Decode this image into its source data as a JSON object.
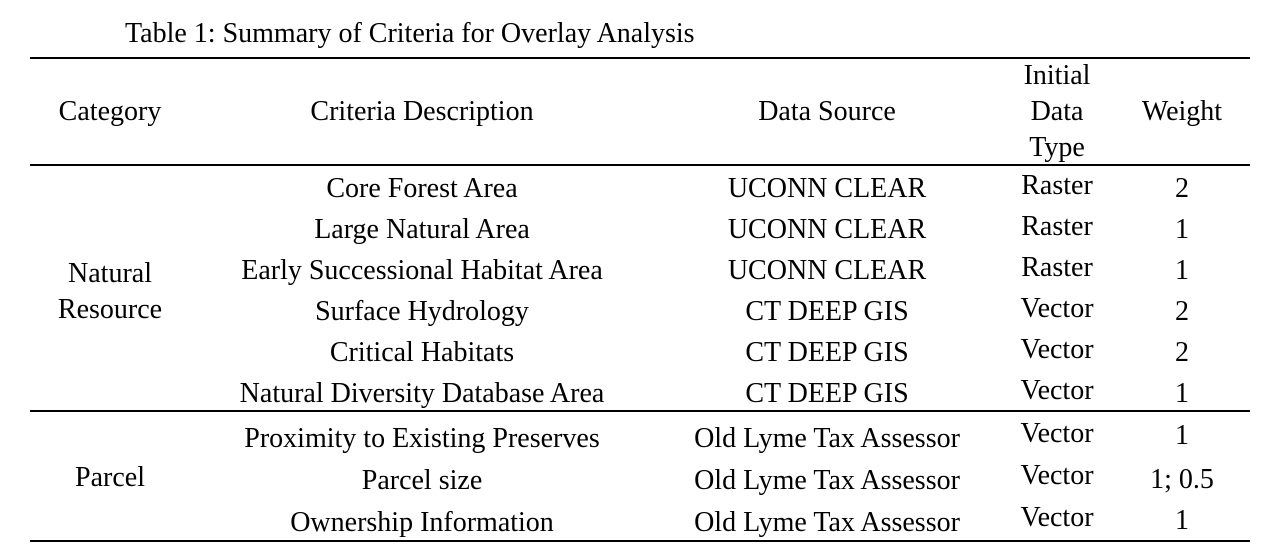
{
  "caption": "Table 1: Summary of Criteria for Overlay Analysis",
  "headers": {
    "category": "Category",
    "criteria": "Criteria Description",
    "source": "Data Source",
    "type_line1": "Initial",
    "type_line2": "Data",
    "type_line3": "Type",
    "weight": "Weight"
  },
  "groups": [
    {
      "category_line1": "Natural",
      "category_line2": "Resource",
      "rows": [
        {
          "criteria": "Core Forest Area",
          "source": "UCONN CLEAR",
          "type": "Raster",
          "weight": "2"
        },
        {
          "criteria": "Large Natural Area",
          "source": "UCONN CLEAR",
          "type": "Raster",
          "weight": "1"
        },
        {
          "criteria": "Early Successional Habitat Area",
          "source": "UCONN CLEAR",
          "type": "Raster",
          "weight": "1"
        },
        {
          "criteria": "Surface Hydrology",
          "source": "CT DEEP GIS",
          "type": "Vector",
          "weight": "2"
        },
        {
          "criteria": "Critical Habitats",
          "source": "CT DEEP GIS",
          "type": "Vector",
          "weight": "2"
        },
        {
          "criteria": "Natural Diversity Database Area",
          "source": "CT DEEP GIS",
          "type": "Vector",
          "weight": "1"
        }
      ]
    },
    {
      "category_line1": "Parcel",
      "rows": [
        {
          "criteria": "Proximity to Existing Preserves",
          "source": "Old Lyme Tax Assessor",
          "type": "Vector",
          "weight": "1"
        },
        {
          "criteria": "Parcel size",
          "source": "Old Lyme Tax Assessor",
          "type": "Vector",
          "weight": "1; 0.5"
        },
        {
          "criteria": "Ownership Information",
          "source": "Old Lyme Tax Assessor",
          "type": "Vector",
          "weight": "1"
        }
      ]
    }
  ]
}
